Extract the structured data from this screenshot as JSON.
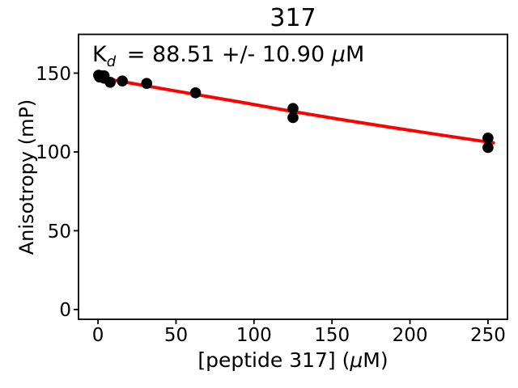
{
  "title": "317",
  "annotation": {
    "text": "K_d = 88.51 +/- 10.90 μM",
    "k": "K",
    "sub": "d",
    "rest": " = 88.51 +/- 10.90 ",
    "mu": "μ",
    "unit": "M"
  },
  "axes": {
    "xlabel_pre": "[peptide 317] (",
    "xlabel_mu": "μ",
    "xlabel_post": "M)",
    "ylabel": "Anisotropy (mP)"
  },
  "chart_data": {
    "type": "scatter",
    "title": "317",
    "xlabel": "[peptide 317] (μM)",
    "ylabel": "Anisotropy (mP)",
    "annotation": "K_d = 88.51 +/- 10.90 μM",
    "kd_um": 88.51,
    "kd_err_um": 10.9,
    "xlim": [
      -12.5,
      262.5
    ],
    "ylim": [
      -6.2,
      174.6
    ],
    "x_ticks": [
      0,
      50,
      100,
      150,
      200,
      250
    ],
    "y_ticks": [
      0,
      50,
      100,
      150
    ],
    "grid": false,
    "point_color": "#000000",
    "points": [
      [
        0.4,
        148.7
      ],
      [
        1,
        147.5
      ],
      [
        2,
        148.3
      ],
      [
        3.9,
        148.3
      ],
      [
        3.9,
        146.8
      ],
      [
        7.8,
        144.2
      ],
      [
        15.6,
        145
      ],
      [
        31.2,
        143.5
      ],
      [
        62.5,
        137.5
      ],
      [
        125,
        127.6
      ],
      [
        125,
        121.8
      ],
      [
        250,
        108.8
      ],
      [
        250,
        102.8
      ]
    ],
    "fit_curve": {
      "color": "#ff0000",
      "x": [
        0,
        15.6,
        31.2,
        62.5,
        93.75,
        125,
        156.25,
        187.5,
        218.75,
        250,
        253.5
      ],
      "y": [
        147.3,
        144.6,
        141.9,
        136.5,
        131.2,
        125.6,
        120.5,
        115.6,
        110.9,
        106.3,
        105.8
      ]
    }
  }
}
